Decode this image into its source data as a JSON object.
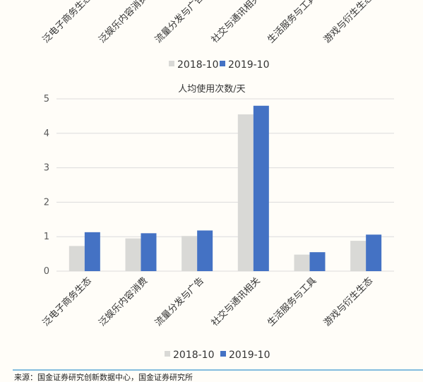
{
  "top_fragment": {
    "categories": [
      "泛电子商务生态",
      "泛娱乐内容消费",
      "流量分发与广告",
      "社交与通讯相关",
      "生活服务与工具",
      "游戏与衍生生态"
    ],
    "legend": [
      "2018-10",
      "2019-10"
    ]
  },
  "chart_data": {
    "type": "bar",
    "title": "人均使用次数/天",
    "categories": [
      "泛电子商务生态",
      "泛娱乐内容消费",
      "流量分发与广告",
      "社交与通讯相关",
      "生活服务与工具",
      "游戏与衍生生态"
    ],
    "series": [
      {
        "name": "2018-10",
        "values": [
          0.73,
          0.95,
          1.02,
          4.55,
          0.48,
          0.88
        ]
      },
      {
        "name": "2019-10",
        "values": [
          1.13,
          1.1,
          1.18,
          4.8,
          0.55,
          1.06
        ]
      }
    ],
    "yticks": [
      "0",
      "1",
      "2",
      "3",
      "4",
      "5"
    ],
    "ylim": [
      0,
      5
    ],
    "xlabel": "",
    "ylabel": "",
    "grid": true,
    "legend_position": "bottom"
  },
  "source": "来源：国金证券研究创新数据中心，国金证券研究所",
  "colors": {
    "series_2018": "#d9d9d6",
    "series_2019": "#4472c4",
    "grid": "#dcdcdc",
    "source_line": "#5aa7d6"
  }
}
